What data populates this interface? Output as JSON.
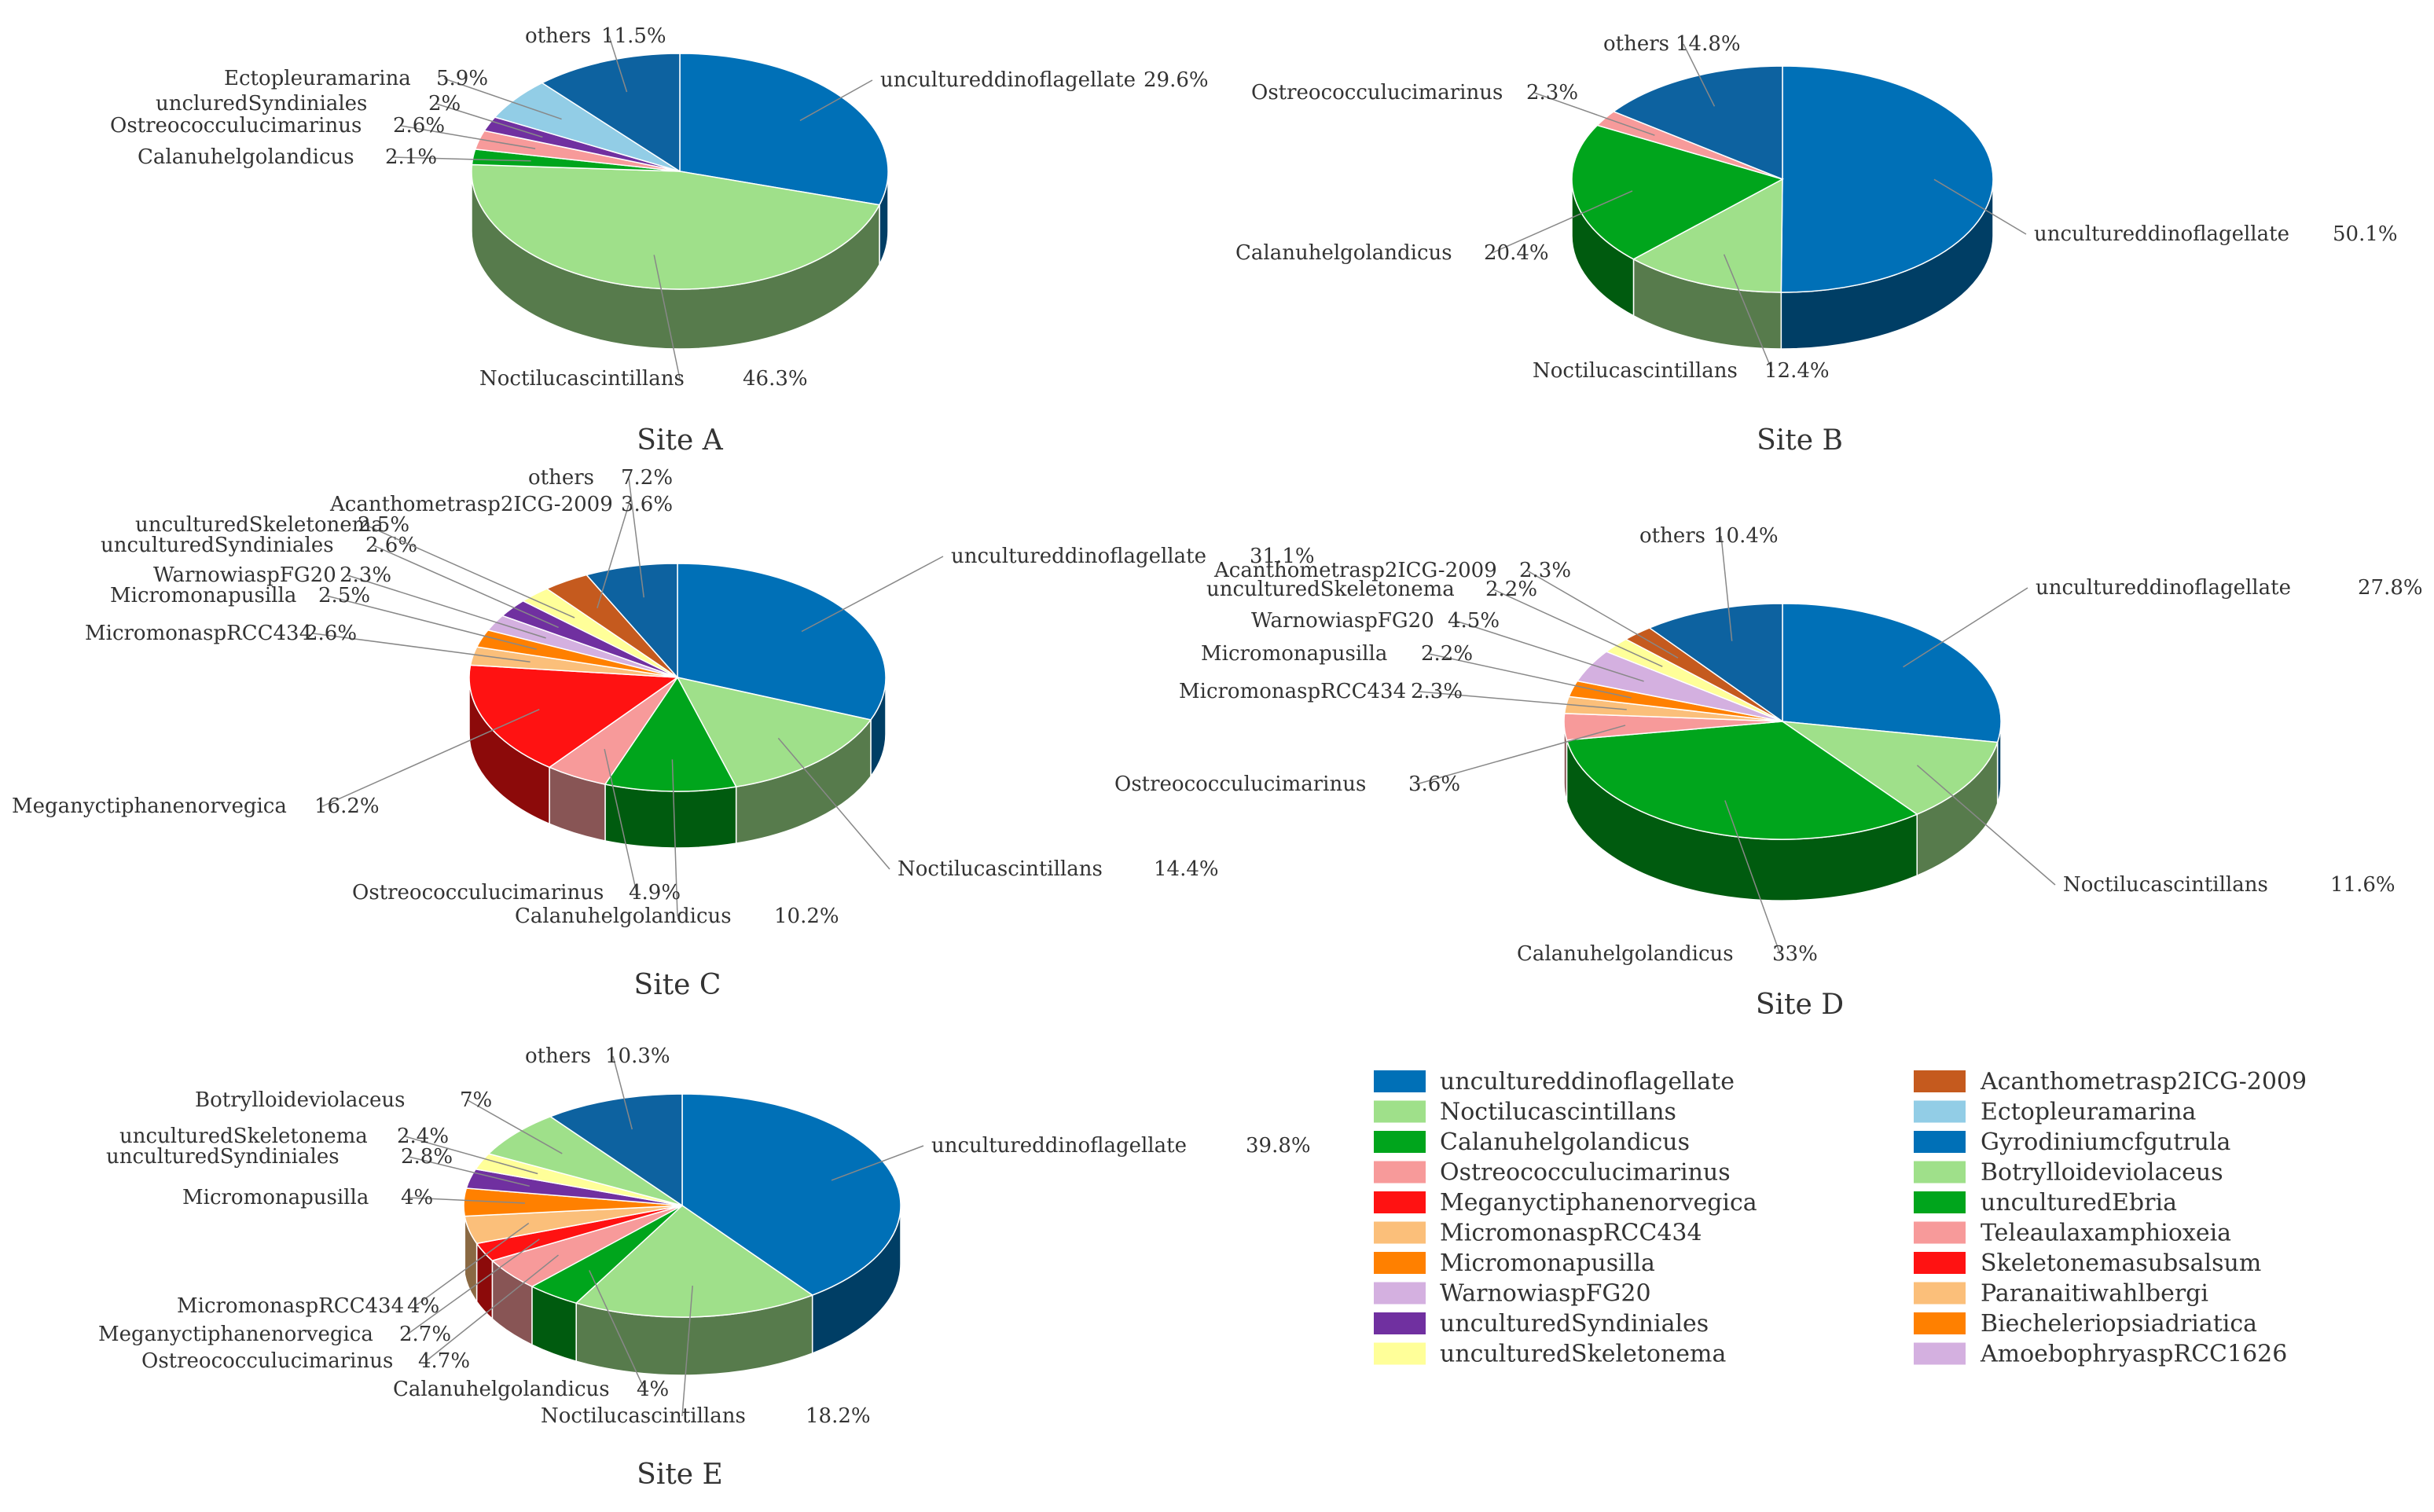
{
  "legend": {
    "column1": [
      {
        "label": "uncultureddinoflagellate",
        "color": "#0070b7"
      },
      {
        "label": "Noctilucascintillans",
        "color": "#9fe08a"
      },
      {
        "label": "Calanuhelgolandicus",
        "color": "#00a51c"
      },
      {
        "label": "Ostreococculucimarinus",
        "color": "#f79a9a"
      },
      {
        "label": "Meganyctiphanenorvegica",
        "color": "#ff1212"
      },
      {
        "label": "MicromonaspRCC434",
        "color": "#fbbf7a"
      },
      {
        "label": "Micromonapusilla",
        "color": "#ff8000"
      },
      {
        "label": "WarnowiaspFG20",
        "color": "#d4b0e0"
      },
      {
        "label": "unculturedSyndiniales",
        "color": "#7030a0"
      },
      {
        "label": "unculturedSkeletonema",
        "color": "#ffff99"
      }
    ],
    "column2": [
      {
        "label": "Acanthometrasp2ICG-2009",
        "color": "#c55a1e"
      },
      {
        "label": "Ectopleuramarina",
        "color": "#92cde6"
      },
      {
        "label": "Gyrodiniumcfgutrula",
        "color": "#0070b7"
      },
      {
        "label": "Botrylloideviolaceus",
        "color": "#9fe08a"
      },
      {
        "label": "unculturedEbria",
        "color": "#00a51c"
      },
      {
        "label": "Teleaulaxamphioxeia",
        "color": "#f79a9a"
      },
      {
        "label": "Skeletonemasubsalsum",
        "color": "#ff1212"
      },
      {
        "label": "Paranaitiwahlbergi",
        "color": "#fbbf7a"
      },
      {
        "label": "Biecheleriopsiadriatica",
        "color": "#ff8000"
      },
      {
        "label": "AmoebophryaspRCC1626",
        "color": "#d4b0e0"
      }
    ]
  },
  "chart_data": [
    {
      "type": "pie",
      "title": "Site A",
      "slices": [
        {
          "label": "uncultureddinoflagellate",
          "pct": "29.6%",
          "value": 29.6,
          "color": "#0070b7"
        },
        {
          "label": "Noctilucascintillans",
          "pct": "46.3%",
          "value": 46.3,
          "color": "#9fe08a"
        },
        {
          "label": "Calanuhelgolandicus",
          "pct": "2.1%",
          "value": 2.1,
          "color": "#00a51c"
        },
        {
          "label": "Ostreococculucimarinus",
          "pct": "2.6%",
          "value": 2.6,
          "color": "#f79a9a"
        },
        {
          "label": "uncluredSyndiniales",
          "pct": "2%",
          "value": 2.0,
          "color": "#7030a0"
        },
        {
          "label": "Ectopleuramarina",
          "pct": "5.9%",
          "value": 5.9,
          "color": "#92cde6"
        },
        {
          "label": "others",
          "pct": "11.5%",
          "value": 11.5,
          "color": "#0d62a0"
        }
      ]
    },
    {
      "type": "pie",
      "title": "Site B",
      "slices": [
        {
          "label": "uncultureddinoflagellate",
          "pct": "50.1%",
          "value": 50.1,
          "color": "#0070b7"
        },
        {
          "label": "Noctilucascintillans",
          "pct": "12.4%",
          "value": 12.4,
          "color": "#9fe08a"
        },
        {
          "label": "Calanuhelgolandicus",
          "pct": "20.4%",
          "value": 20.4,
          "color": "#00a51c"
        },
        {
          "label": "Ostreococculucimarinus",
          "pct": "2.3%",
          "value": 2.3,
          "color": "#f79a9a"
        },
        {
          "label": "others",
          "pct": "14.8%",
          "value": 14.8,
          "color": "#0d62a0"
        }
      ]
    },
    {
      "type": "pie",
      "title": "Site C",
      "slices": [
        {
          "label": "uncultureddinoflagellate",
          "pct": "31.1%",
          "value": 31.1,
          "color": "#0070b7"
        },
        {
          "label": "Noctilucascintillans",
          "pct": "14.4%",
          "value": 14.4,
          "color": "#9fe08a"
        },
        {
          "label": "Calanuhelgolandicus",
          "pct": "10.2%",
          "value": 10.2,
          "color": "#00a51c"
        },
        {
          "label": "Ostreococculucimarinus",
          "pct": "4.9%",
          "value": 4.9,
          "color": "#f79a9a"
        },
        {
          "label": "Meganyctiphanenorvegica",
          "pct": "16.2%",
          "value": 16.2,
          "color": "#ff1212"
        },
        {
          "label": "MicromonaspRCC434",
          "pct": "2.6%",
          "value": 2.6,
          "color": "#fbbf7a"
        },
        {
          "label": "Micromonapusilla",
          "pct": "2.5%",
          "value": 2.5,
          "color": "#ff8000"
        },
        {
          "label": "WarnowiaspFG20",
          "pct": "2.3%",
          "value": 2.3,
          "color": "#d4b0e0"
        },
        {
          "label": "unculturedSyndiniales",
          "pct": "2.6%",
          "value": 2.6,
          "color": "#7030a0"
        },
        {
          "label": "unculturedSkeletonema",
          "pct": "2.5%",
          "value": 2.5,
          "color": "#ffff99"
        },
        {
          "label": "Acanthometrasp2ICG-2009",
          "pct": "3.6%",
          "value": 3.6,
          "color": "#c55a1e"
        },
        {
          "label": "others",
          "pct": "7.2%",
          "value": 7.2,
          "color": "#0d62a0"
        }
      ]
    },
    {
      "type": "pie",
      "title": "Site D",
      "slices": [
        {
          "label": "uncultureddinoflagellate",
          "pct": "27.8%",
          "value": 27.8,
          "color": "#0070b7"
        },
        {
          "label": "Noctilucascintillans",
          "pct": "11.6%",
          "value": 11.6,
          "color": "#9fe08a"
        },
        {
          "label": "Calanuhelgolandicus",
          "pct": "33%",
          "value": 33.0,
          "color": "#00a51c"
        },
        {
          "label": "Ostreococculucimarinus",
          "pct": "3.6%",
          "value": 3.6,
          "color": "#f79a9a"
        },
        {
          "label": "MicromonaspRCC434",
          "pct": "2.3%",
          "value": 2.3,
          "color": "#fbbf7a"
        },
        {
          "label": "Micromonapusilla",
          "pct": "2.2%",
          "value": 2.2,
          "color": "#ff8000"
        },
        {
          "label": "WarnowiaspFG20",
          "pct": "4.5%",
          "value": 4.5,
          "color": "#d4b0e0"
        },
        {
          "label": "unculturedSkeletonema",
          "pct": "2.2%",
          "value": 2.2,
          "color": "#ffff99"
        },
        {
          "label": "Acanthometrasp2ICG-2009",
          "pct": "2.3%",
          "value": 2.3,
          "color": "#c55a1e"
        },
        {
          "label": "others",
          "pct": "10.4%",
          "value": 10.4,
          "color": "#0d62a0"
        }
      ]
    },
    {
      "type": "pie",
      "title": "Site E",
      "slices": [
        {
          "label": "uncultureddinoflagellate",
          "pct": "39.8%",
          "value": 39.8,
          "color": "#0070b7"
        },
        {
          "label": "Noctilucascintillans",
          "pct": "18.2%",
          "value": 18.2,
          "color": "#9fe08a"
        },
        {
          "label": "Calanuhelgolandicus",
          "pct": "4%",
          "value": 4.0,
          "color": "#00a51c"
        },
        {
          "label": "Ostreococculucimarinus",
          "pct": "4.7%",
          "value": 4.7,
          "color": "#f79a9a"
        },
        {
          "label": "Meganyctiphanenorvegica",
          "pct": "2.7%",
          "value": 2.7,
          "color": "#ff1212"
        },
        {
          "label": "MicromonaspRCC434",
          "pct": "4%",
          "value": 4.0,
          "color": "#fbbf7a"
        },
        {
          "label": "Micromonapusilla",
          "pct": "4%",
          "value": 4.0,
          "color": "#ff8000"
        },
        {
          "label": "unculturedSyndiniales",
          "pct": "2.8%",
          "value": 2.8,
          "color": "#7030a0"
        },
        {
          "label": "unculturedSkeletonema",
          "pct": "2.4%",
          "value": 2.4,
          "color": "#ffff99"
        },
        {
          "label": "Botrylloideviolaceus",
          "pct": "7%",
          "value": 7.0,
          "color": "#9fe08a"
        },
        {
          "label": "others",
          "pct": "10.3%",
          "value": 10.3,
          "color": "#0d62a0"
        }
      ]
    }
  ]
}
